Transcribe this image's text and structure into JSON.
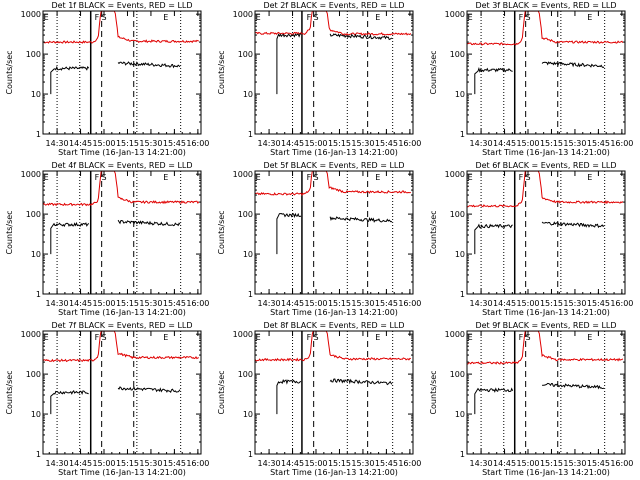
{
  "colors": {
    "events": "#000000",
    "lld": "#e00000",
    "axes": "#000000"
  },
  "shared": {
    "xlabel": "Start Time (16-Jan-13 14:21:00)",
    "ylabel": "Counts/sec",
    "xticks": [
      {
        "t": 870,
        "label": "14:30"
      },
      {
        "t": 885,
        "label": "14:45"
      },
      {
        "t": 900,
        "label": "15:00"
      },
      {
        "t": 915,
        "label": "15:15"
      },
      {
        "t": 930,
        "label": "15:30"
      },
      {
        "t": 945,
        "label": "15:45"
      },
      {
        "t": 960,
        "label": "16:00"
      }
    ],
    "yticks": [
      {
        "v": 1,
        "label": "1"
      },
      {
        "v": 10,
        "label": "10"
      },
      {
        "v": 100,
        "label": "100"
      },
      {
        "v": 1000,
        "label": "1000"
      }
    ],
    "xlim": [
      861,
      962
    ],
    "ylim": [
      1,
      1200
    ],
    "yscale": "log"
  },
  "chart_data": [
    {
      "type": "line",
      "title": "Det 1f BLACK = Events, RED = LLD",
      "grid": true,
      "markers": {
        "E1": 863,
        "F": 895.5,
        "S": 900,
        "E2": 939.5
      },
      "vlines": {
        "dotted": [
          870,
          884.5,
          921,
          949
        ],
        "dashed": [
          898.5,
          919
        ],
        "solid": [
          891.5
        ]
      },
      "events": {
        "baseline": 44,
        "post": 60,
        "start": 866,
        "rise": 868
      },
      "lld": {
        "baseline": 200,
        "post": 210,
        "start": 861
      }
    },
    {
      "type": "line",
      "title": "Det 2f BLACK = Events, RED = LLD",
      "grid": true,
      "markers": {
        "E1": 863,
        "F": 895.5,
        "S": 900,
        "E2": 939.5
      },
      "vlines": {
        "dotted": [
          885,
          920,
          949
        ],
        "dashed": [
          898.5,
          933
        ],
        "solid": [
          891
        ]
      },
      "events": {
        "baseline": 300,
        "post": 300,
        "start": 875,
        "rise": 876
      },
      "lld": {
        "baseline": 330,
        "post": 320,
        "start": 861
      }
    },
    {
      "type": "line",
      "title": "Det 3f BLACK = Events, RED = LLD",
      "grid": true,
      "markers": {
        "E1": 863,
        "F": 895.5,
        "S": 900,
        "E2": 939.5
      },
      "vlines": {
        "dotted": [
          870,
          884.5,
          921,
          949
        ],
        "dashed": [
          898.5,
          919
        ],
        "solid": [
          891.5
        ]
      },
      "events": {
        "baseline": 40,
        "post": 60,
        "start": 866,
        "rise": 868
      },
      "lld": {
        "baseline": 180,
        "post": 200,
        "start": 861
      }
    },
    {
      "type": "line",
      "title": "Det 4f BLACK = Events, RED = LLD",
      "grid": true,
      "markers": {
        "E1": 863,
        "F": 895.5,
        "S": 900,
        "E2": 939.5
      },
      "vlines": {
        "dotted": [
          870,
          884.5,
          921,
          949
        ],
        "dashed": [
          898.5,
          919
        ],
        "solid": [
          891.5
        ]
      },
      "events": {
        "baseline": 55,
        "post": 65,
        "start": 866,
        "rise": 868
      },
      "lld": {
        "baseline": 175,
        "post": 200,
        "start": 861
      }
    },
    {
      "type": "line",
      "title": "Det 5f BLACK = Events, RED = LLD",
      "grid": true,
      "markers": {
        "E1": 863,
        "F": 895.5,
        "S": 900,
        "E2": 939.5
      },
      "vlines": {
        "dotted": [
          885,
          920,
          949
        ],
        "dashed": [
          898.5,
          933
        ],
        "solid": [
          891
        ]
      },
      "events": {
        "baseline": 95,
        "post": 80,
        "start": 875,
        "rise": 876
      },
      "lld": {
        "baseline": 320,
        "post": 360,
        "start": 861
      }
    },
    {
      "type": "line",
      "title": "Det 6f BLACK = Events, RED = LLD",
      "grid": true,
      "markers": {
        "E1": 863,
        "F": 895.5,
        "S": 900,
        "E2": 939.5
      },
      "vlines": {
        "dotted": [
          870,
          884.5,
          921,
          949
        ],
        "dashed": [
          898.5,
          919
        ],
        "solid": [
          891.5
        ]
      },
      "events": {
        "baseline": 50,
        "post": 60,
        "start": 866,
        "rise": 868
      },
      "lld": {
        "baseline": 160,
        "post": 200,
        "start": 861
      }
    },
    {
      "type": "line",
      "title": "Det 7f BLACK = Events, RED = LLD",
      "grid": true,
      "markers": {
        "E1": 863,
        "F": 895.5,
        "S": 900,
        "E2": 939.5
      },
      "vlines": {
        "dotted": [
          870,
          884.5,
          921,
          949
        ],
        "dashed": [
          898.5,
          919
        ],
        "solid": [
          891.5
        ]
      },
      "events": {
        "baseline": 35,
        "post": 45,
        "start": 866,
        "rise": 868
      },
      "lld": {
        "baseline": 220,
        "post": 260,
        "start": 861
      }
    },
    {
      "type": "line",
      "title": "Det 8f BLACK = Events, RED = LLD",
      "grid": true,
      "markers": {
        "E1": 863,
        "F": 895.5,
        "S": 900,
        "E2": 939.5
      },
      "vlines": {
        "dotted": [
          885,
          920,
          949
        ],
        "dashed": [
          898.5,
          933
        ],
        "solid": [
          891
        ]
      },
      "events": {
        "baseline": 65,
        "post": 70,
        "start": 875,
        "rise": 876
      },
      "lld": {
        "baseline": 230,
        "post": 240,
        "start": 861
      }
    },
    {
      "type": "line",
      "title": "Det 9f BLACK = Events, RED = LLD",
      "grid": true,
      "markers": {
        "E1": 863,
        "F": 895.5,
        "S": 900,
        "E2": 939.5
      },
      "vlines": {
        "dotted": [
          870,
          884.5,
          921,
          949
        ],
        "dashed": [
          898.5,
          919
        ],
        "solid": [
          891.5
        ]
      },
      "events": {
        "baseline": 40,
        "post": 55,
        "start": 866,
        "rise": 868
      },
      "lld": {
        "baseline": 190,
        "post": 230,
        "start": 861
      }
    }
  ]
}
